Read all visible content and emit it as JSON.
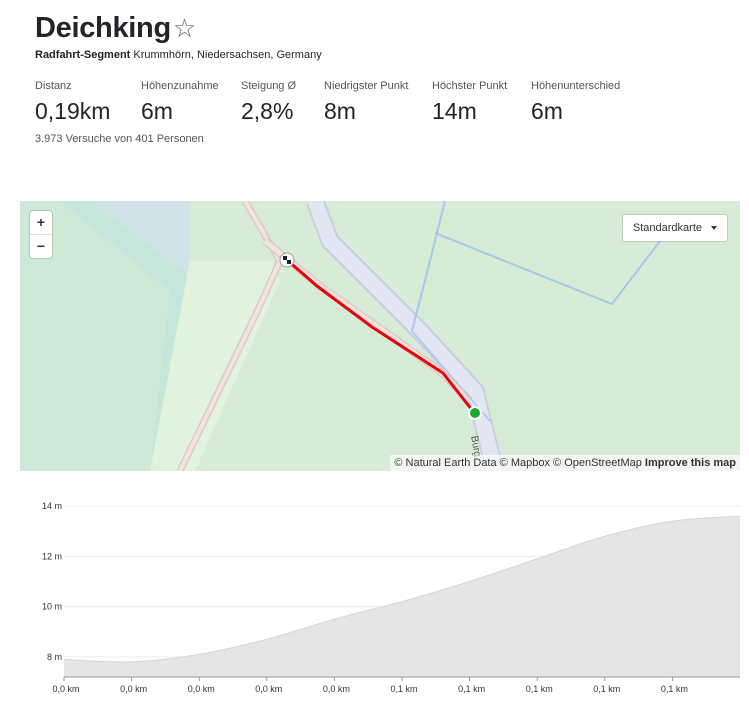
{
  "segment": {
    "title": "Deichking",
    "star_icon": "☆",
    "type_label": "Radfahrt-Segment",
    "location": "Krummhörn, Niedersachsen, Germany",
    "attempts": "3.973 Versuche von 401 Personen"
  },
  "stats": [
    {
      "label": "Distanz",
      "value": "0,19km"
    },
    {
      "label": "Höhenzunahme",
      "value": "6m"
    },
    {
      "label": "Steigung Ø",
      "value": "2,8%"
    },
    {
      "label": "Niedrigster Punkt",
      "value": "8m"
    },
    {
      "label": "Höchster Punkt",
      "value": "14m"
    },
    {
      "label": "Höhenunterschied",
      "value": "6m"
    }
  ],
  "map": {
    "zoom_in": "+",
    "zoom_out": "−",
    "style_select": "Standardkarte",
    "street_label": "Burg",
    "attribution": {
      "natural_earth": "© Natural Earth Data",
      "mapbox": "© Mapbox",
      "osm": "© OpenStreetMap",
      "improve": "Improve this map"
    },
    "colors": {
      "route": "#e8000b",
      "start": "#1ba82f",
      "land": "#d6ecd6",
      "water": "#cfe3e9",
      "road": "#e2e6f0"
    }
  },
  "chart_data": {
    "type": "area",
    "y_ticks": [
      "14 m",
      "12 m",
      "10 m",
      "8 m"
    ],
    "y_tick_values": [
      14,
      12,
      10,
      8
    ],
    "x_ticks": [
      "0,0 km",
      "0,0 km",
      "0,0 km",
      "0,0 km",
      "0,0 km",
      "0,1 km",
      "0,1 km",
      "0,1 km",
      "0,1 km",
      "0,1 km"
    ],
    "ylim": [
      7.2,
      14.4
    ],
    "x": [
      0.0,
      0.019,
      0.038,
      0.057,
      0.076,
      0.095,
      0.114,
      0.133,
      0.152,
      0.171,
      0.19
    ],
    "values": [
      7.9,
      7.8,
      8.1,
      8.7,
      9.5,
      10.2,
      11.0,
      11.9,
      12.8,
      13.4,
      13.6
    ],
    "fill_color": "#e5e5e5",
    "grid": true
  }
}
